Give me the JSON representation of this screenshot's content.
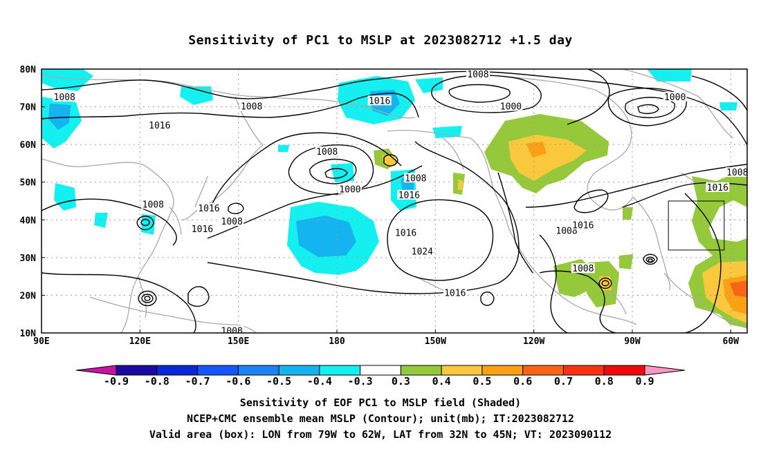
{
  "title": "Sensitivity of PC1 to MSLP at 2023082712 +1.5 day",
  "captions": [
    "Sensitivity of EOF PC1 to MSLP field (Shaded)",
    "NCEP+CMC ensemble mean MSLP (Contour); unit(mb); IT:2023082712",
    "Valid area (box): LON from 79W to 62W, LAT from 32N to 45N; VT: 2023090112"
  ],
  "map": {
    "lon_range": [
      90,
      305
    ],
    "lat_range": [
      10,
      80
    ],
    "lon_ticks": [
      {
        "lon": 90,
        "label": "90E"
      },
      {
        "lon": 120,
        "label": "120E"
      },
      {
        "lon": 150,
        "label": "150E"
      },
      {
        "lon": 180,
        "label": "180"
      },
      {
        "lon": 210,
        "label": "150W"
      },
      {
        "lon": 240,
        "label": "120W"
      },
      {
        "lon": 270,
        "label": "90W"
      },
      {
        "lon": 300,
        "label": "60W"
      }
    ],
    "lat_ticks": [
      {
        "lat": 80,
        "label": "80N"
      },
      {
        "lat": 70,
        "label": "70N"
      },
      {
        "lat": 60,
        "label": "60N"
      },
      {
        "lat": 50,
        "label": "50N"
      },
      {
        "lat": 40,
        "label": "40N"
      },
      {
        "lat": 30,
        "label": "30N"
      },
      {
        "lat": 20,
        "label": "20N"
      },
      {
        "lat": 10,
        "label": "10N"
      }
    ],
    "grid": true,
    "valid_box": {
      "lon_min": 281,
      "lon_max": 298,
      "lat_min": 32,
      "lat_max": 45
    },
    "contour_labels": [
      {
        "text": "1008",
        "lon": 97,
        "lat": 72.5
      },
      {
        "text": "1016",
        "lon": 126,
        "lat": 65
      },
      {
        "text": "1008",
        "lon": 154,
        "lat": 70
      },
      {
        "text": "1016",
        "lon": 193,
        "lat": 71.5
      },
      {
        "text": "1008",
        "lon": 223,
        "lat": 78.5
      },
      {
        "text": "1000",
        "lon": 233,
        "lat": 70
      },
      {
        "text": "1000",
        "lon": 283,
        "lat": 72.5
      },
      {
        "text": "1008",
        "lon": 177,
        "lat": 58
      },
      {
        "text": "1000",
        "lon": 184,
        "lat": 48
      },
      {
        "text": "1008",
        "lon": 204,
        "lat": 51
      },
      {
        "text": "1016",
        "lon": 202,
        "lat": 46.5
      },
      {
        "text": "1008",
        "lon": 124,
        "lat": 44
      },
      {
        "text": "1016",
        "lon": 141,
        "lat": 43
      },
      {
        "text": "1008",
        "lon": 148,
        "lat": 39.5
      },
      {
        "text": "1016",
        "lon": 139,
        "lat": 37.5
      },
      {
        "text": "1016",
        "lon": 201,
        "lat": 36.5
      },
      {
        "text": "1024",
        "lon": 206,
        "lat": 31.5
      },
      {
        "text": "1008",
        "lon": 250,
        "lat": 37
      },
      {
        "text": "1016",
        "lon": 255,
        "lat": 38.5
      },
      {
        "text": "1008",
        "lon": 255,
        "lat": 27
      },
      {
        "text": "1016",
        "lon": 216,
        "lat": 20.5
      },
      {
        "text": "1008",
        "lon": 302,
        "lat": 52.5
      },
      {
        "text": "1016",
        "lon": 296,
        "lat": 48.5
      },
      {
        "text": "1008",
        "lon": 148,
        "lat": 10.5
      }
    ]
  },
  "colorbar": {
    "labels": [
      "-0.9",
      "-0.8",
      "-0.7",
      "-0.6",
      "-0.5",
      "-0.4",
      "-0.3",
      "0.3",
      "0.4",
      "0.5",
      "0.6",
      "0.7",
      "0.8",
      "0.9"
    ],
    "colors": [
      "#1a0aa0",
      "#0a28d8",
      "#1455ff",
      "#1e82f5",
      "#14b4f0",
      "#14f0f0",
      "#ffffff",
      "#96c83c",
      "#fac83c",
      "#faa014",
      "#fa6414",
      "#fa3214",
      "#f00a0a"
    ],
    "left_tip_color": "#c814a0",
    "right_tip_color": "#ff96c8"
  }
}
